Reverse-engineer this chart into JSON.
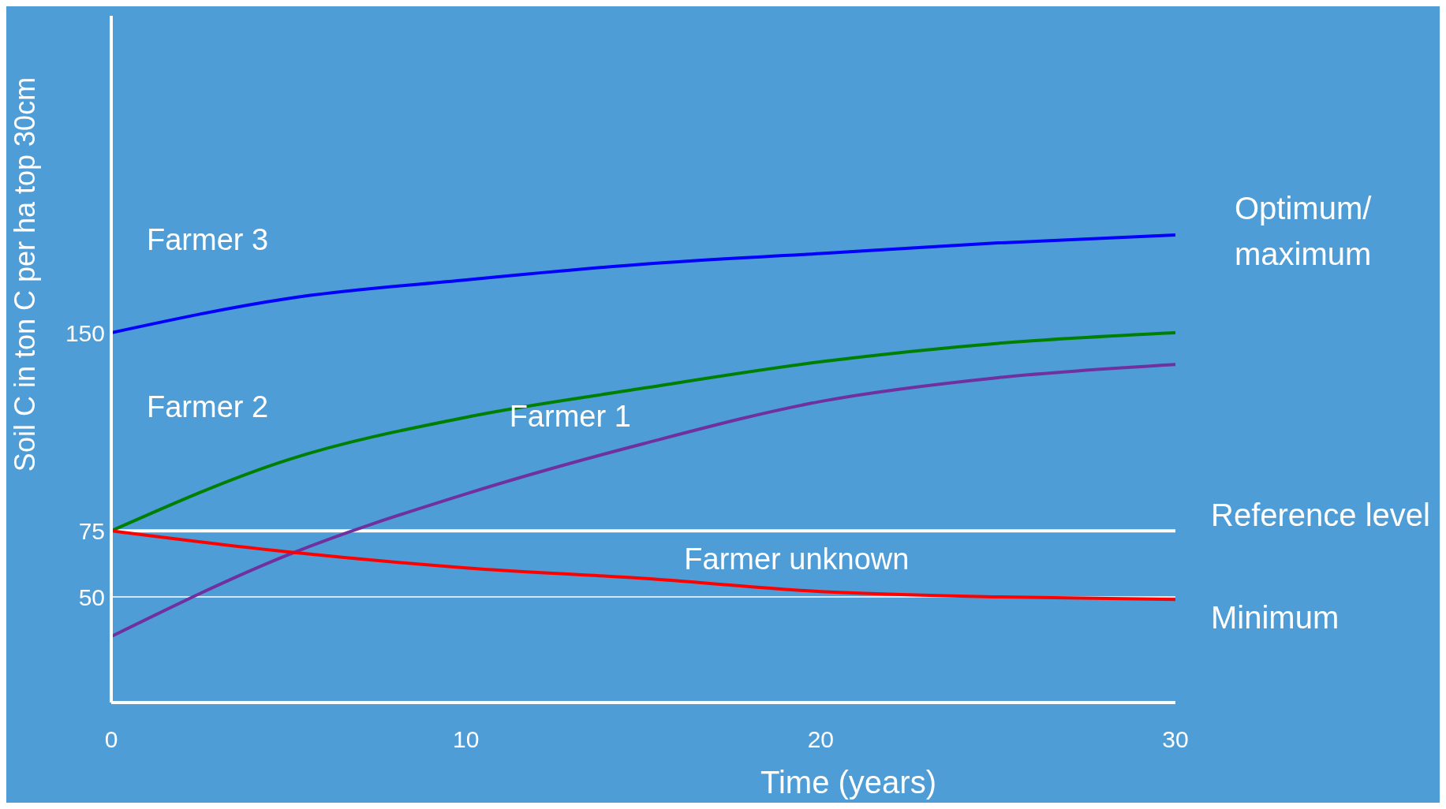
{
  "chart_data": {
    "type": "line",
    "xlabel": "Time (years)",
    "ylabel": "Soil C in ton C per ha top 30cm",
    "x": [
      0,
      5,
      10,
      15,
      20,
      25,
      30
    ],
    "xlim": [
      0,
      30
    ],
    "xticks": [
      0,
      10,
      20,
      30
    ],
    "ylim": [
      10,
      270
    ],
    "yticks": [
      50,
      75,
      150
    ],
    "series": [
      {
        "name": "Farmer 3",
        "color": "#0000ff",
        "values": [
          150,
          163,
          170,
          176,
          180,
          184,
          187
        ]
      },
      {
        "name": "Farmer 2",
        "color": "#008000",
        "values": [
          75,
          102,
          118,
          129,
          139,
          146,
          150
        ]
      },
      {
        "name": "Farmer 1",
        "color": "#7030a0",
        "values": [
          35,
          66,
          89,
          108,
          124,
          133,
          138
        ]
      },
      {
        "name": "Farmer unknown",
        "color": "#ff0000",
        "values": [
          75,
          67,
          61,
          57,
          52,
          50,
          49
        ]
      }
    ],
    "ref_lines": [
      {
        "axis": "y",
        "value": 75,
        "label": "Reference level",
        "color": "#ffffff"
      },
      {
        "axis": "y",
        "value": 50,
        "label": "Minimum",
        "color": "#ffffff"
      }
    ],
    "annotations": [
      {
        "text": "Optimum/ maximum",
        "x": 30,
        "y": 187
      }
    ],
    "marker": "none",
    "line_style": "solid"
  }
}
